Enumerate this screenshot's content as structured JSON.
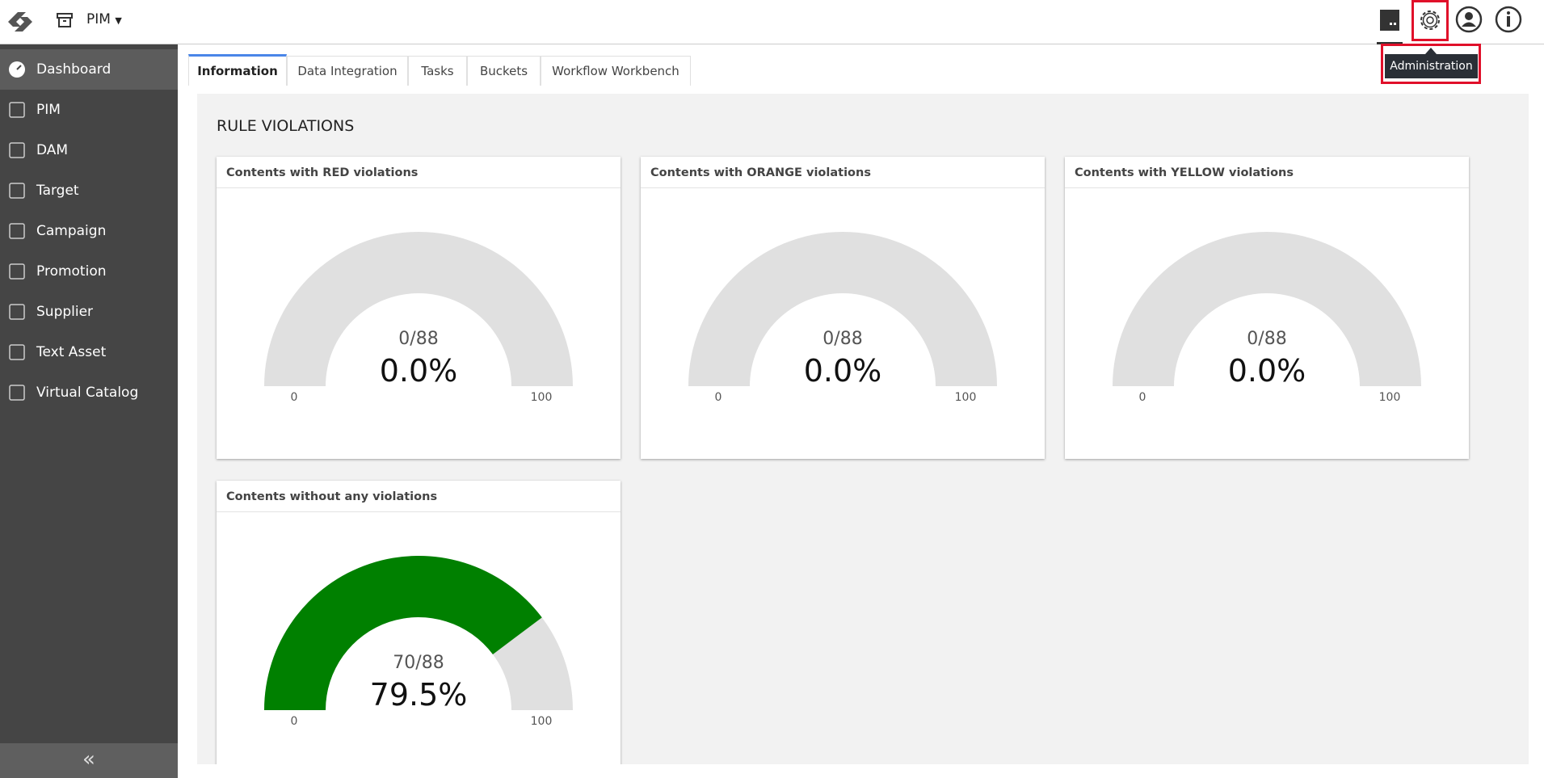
{
  "header": {
    "app": "PIM",
    "tooltip": "Administration"
  },
  "sidebar": {
    "items": [
      "Dashboard",
      "PIM",
      "DAM",
      "Target",
      "Campaign",
      "Promotion",
      "Supplier",
      "Text Asset",
      "Virtual Catalog"
    ],
    "active": 0
  },
  "tabs": {
    "items": [
      "Information",
      "Data Integration",
      "Tasks",
      "Buckets",
      "Workflow Workbench"
    ],
    "active": 0
  },
  "section_title": "RULE VIOLATIONS",
  "gauges": [
    {
      "title": "Contents with RED violations",
      "count_label": "0/88",
      "value": 0,
      "value_label": "0.0%",
      "min": 0,
      "max": 100
    },
    {
      "title": "Contents with ORANGE violations",
      "count_label": "0/88",
      "value": 0,
      "value_label": "0.0%",
      "min": 0,
      "max": 100
    },
    {
      "title": "Contents with YELLOW violations",
      "count_label": "0/88",
      "value": 0,
      "value_label": "0.0%",
      "min": 0,
      "max": 100
    },
    {
      "title": "Contents without any violations",
      "count_label": "70/88",
      "value": 79.5,
      "value_label": "79.5%",
      "min": 0,
      "max": 100,
      "color": "#008000"
    }
  ]
}
